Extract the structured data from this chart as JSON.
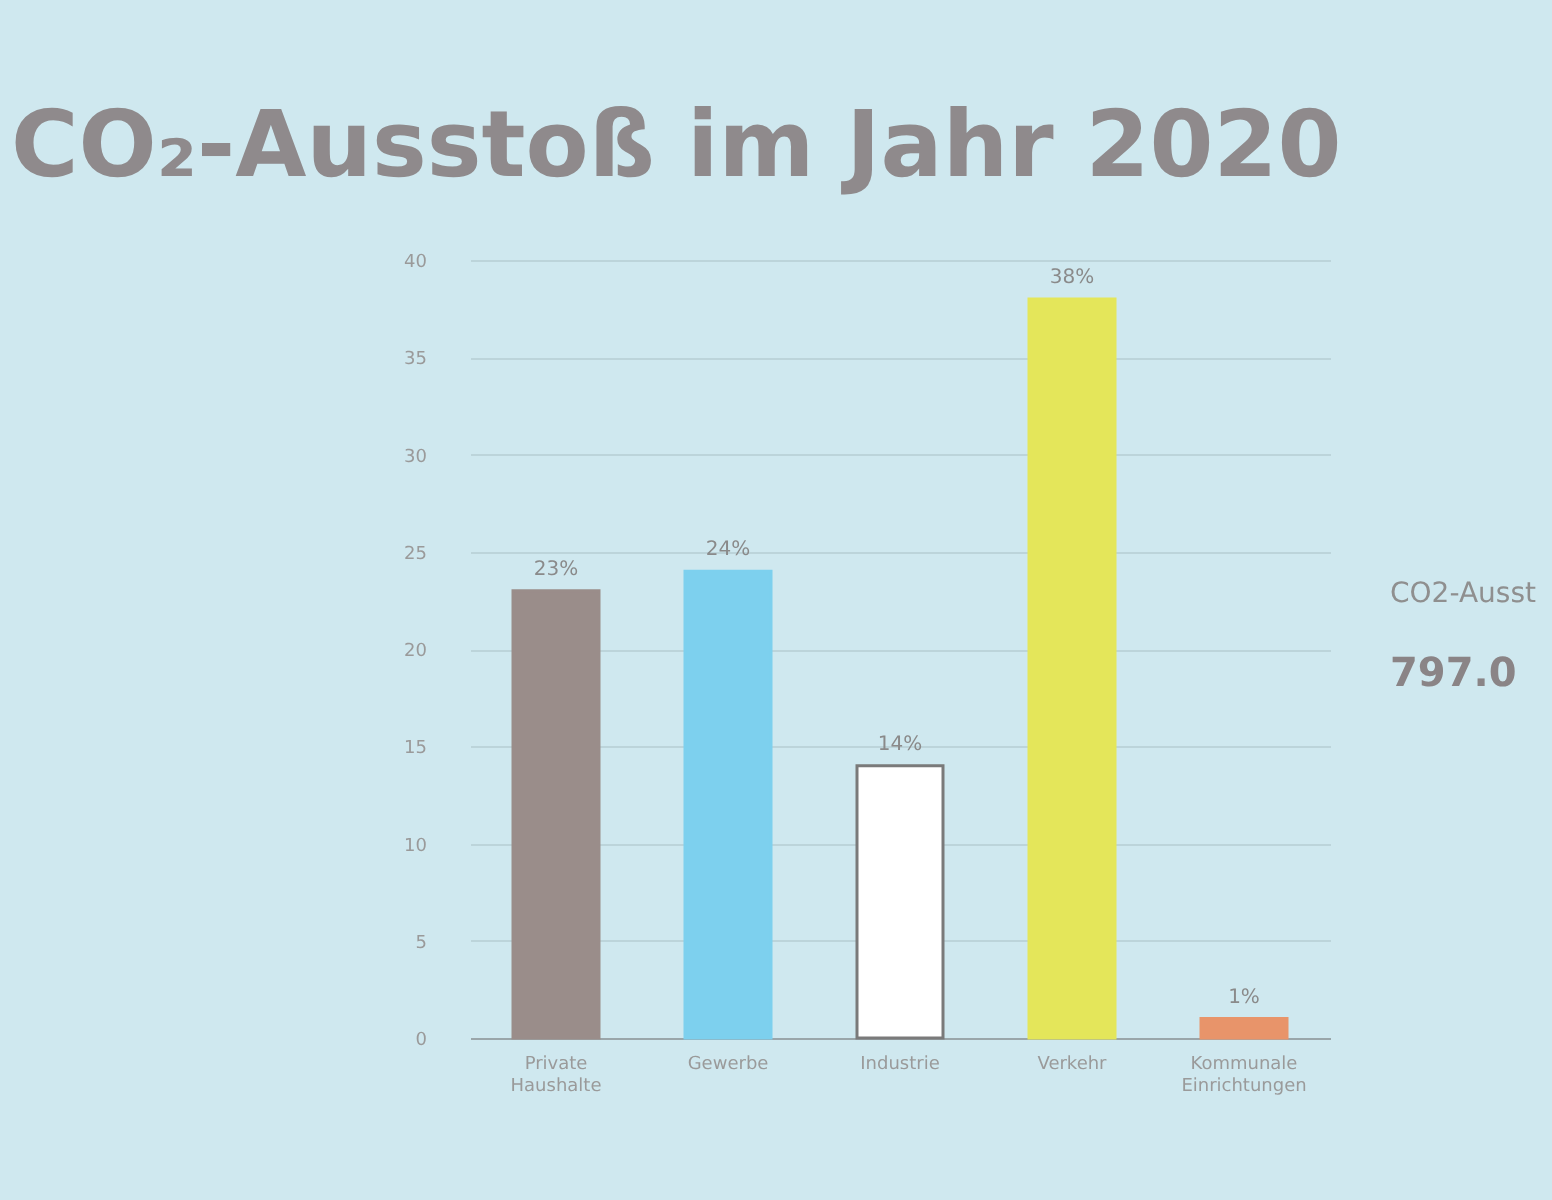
{
  "chart_data": {
    "type": "bar",
    "title": "CO₂-Ausstoß im Jahr 2020",
    "categories": [
      "Private Haushalte",
      "Gewerbe",
      "Industrie",
      "Verkehr",
      "Kommunale Einrichtungen"
    ],
    "values": [
      23,
      24,
      14,
      38,
      1
    ],
    "colors": [
      "#9a8d8a",
      "#7dd0ee",
      "#ffffff",
      "#e4e65a",
      "#e8946a"
    ],
    "value_labels": [
      "23%",
      "24%",
      "14%",
      "38%",
      "1%"
    ],
    "ylim": [
      0,
      40
    ],
    "yticks": [
      0,
      5,
      10,
      15,
      20,
      25,
      30,
      35,
      40
    ],
    "grid": "y",
    "annotations": [
      "CO2-Ausst",
      "797.0"
    ]
  }
}
